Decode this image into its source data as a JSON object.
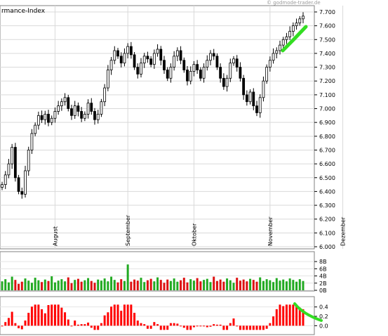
{
  "chart_data": [
    {
      "type": "candlestick",
      "title": "rmance-Index",
      "watermark": "© godmode-trader.de",
      "ylim": [
        6.0,
        7.7
      ],
      "yticks": [
        "6.000",
        "6.100",
        "6.200",
        "6.300",
        "6.400",
        "6.500",
        "6.600",
        "6.700",
        "6.800",
        "6.900",
        "7.000",
        "7.100",
        "7.200",
        "7.300",
        "7.400",
        "7.500",
        "7.600",
        "7.700"
      ],
      "month_labels": [
        "August",
        "September",
        "Oktober",
        "November",
        "Dezember"
      ],
      "month_index": [
        16,
        38,
        58,
        81,
        103
      ],
      "up_color": "#000000",
      "down_color": "#000000",
      "grid": true,
      "annotation_color": "#33dd22",
      "closes": [
        6.45,
        6.52,
        6.6,
        6.72,
        6.5,
        6.4,
        6.38,
        6.55,
        6.7,
        6.82,
        6.88,
        6.95,
        6.92,
        6.96,
        6.9,
        6.93,
        6.98,
        7.02,
        7.05,
        7.08,
        7.0,
        6.95,
        7.02,
        6.98,
        6.93,
        6.96,
        7.04,
        6.98,
        6.92,
        6.96,
        7.05,
        7.15,
        7.28,
        7.35,
        7.42,
        7.38,
        7.33,
        7.4,
        7.45,
        7.39,
        7.3,
        7.25,
        7.33,
        7.38,
        7.36,
        7.32,
        7.4,
        7.43,
        7.35,
        7.28,
        7.22,
        7.3,
        7.38,
        7.42,
        7.35,
        7.28,
        7.2,
        7.27,
        7.32,
        7.28,
        7.22,
        7.3,
        7.35,
        7.4,
        7.38,
        7.3,
        7.22,
        7.16,
        7.22,
        7.33,
        7.36,
        7.3,
        7.22,
        7.1,
        7.05,
        7.12,
        7.02,
        6.97,
        7.08,
        7.2,
        7.3,
        7.35,
        7.4,
        7.42,
        7.46,
        7.5,
        7.52,
        7.56,
        7.6,
        7.62,
        7.65,
        7.67
      ],
      "volume": {
        "ylim": [
          0,
          9
        ],
        "yticks": [
          "0B",
          "2B",
          "4B",
          "6B",
          "8B"
        ],
        "values": [
          2.5,
          3.1,
          2.2,
          3.8,
          2.9,
          1.8,
          2.4,
          3.3,
          2.7,
          2.1,
          3.5,
          2.8,
          2.3,
          3.0,
          2.6,
          3.9,
          2.2,
          2.7,
          3.1,
          2.5,
          3.6,
          2.0,
          2.9,
          3.2,
          2.4,
          2.8,
          3.4,
          2.6,
          2.1,
          3.0,
          2.7,
          3.3,
          2.5,
          3.8,
          2.9,
          2.2,
          3.1,
          2.6,
          7.2,
          2.4,
          3.0,
          2.7,
          3.5,
          2.3,
          2.8,
          3.2,
          2.5,
          3.6,
          2.9,
          2.1,
          3.0,
          2.6,
          3.3,
          2.4,
          2.8,
          3.5,
          2.2,
          3.1,
          2.7,
          3.4,
          2.5,
          2.9,
          3.2,
          2.3,
          3.8,
          2.6,
          3.0,
          2.4,
          3.3,
          2.8,
          2.1,
          3.5,
          2.7,
          3.0,
          2.5,
          3.2,
          2.9,
          2.4,
          3.6,
          2.6,
          3.1,
          2.8,
          2.3,
          3.4,
          2.7,
          3.0,
          2.5,
          3.3,
          2.9,
          2.4,
          3.1,
          2.6
        ],
        "colors": [
          "red",
          "green"
        ]
      },
      "indicator": {
        "ylim": [
          -0.1,
          0.5
        ],
        "yticks": [
          "0.0",
          "0.2",
          "0.4"
        ],
        "bar_color": "#ff0000"
      }
    }
  ]
}
